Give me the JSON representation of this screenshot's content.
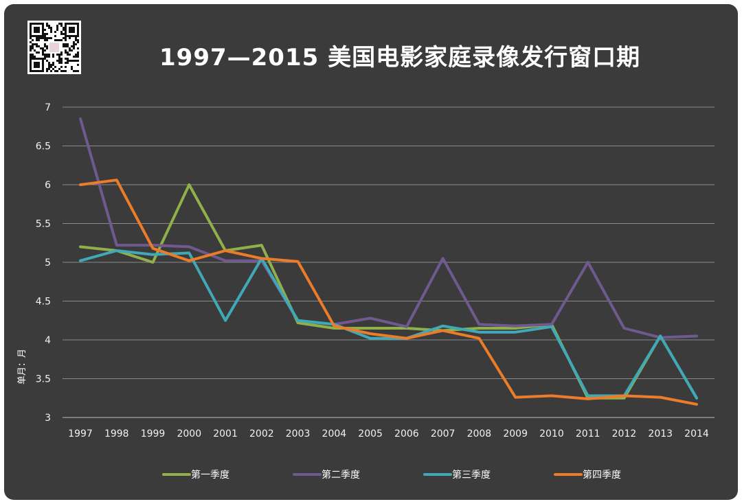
{
  "title": "1997—2015 美国电影家庭录像发行窗口期",
  "chart_data": {
    "type": "line",
    "title": "1997—2015 美国电影家庭录像发行窗口期",
    "xlabel": "",
    "ylabel": "单月：月",
    "categories": [
      "1997",
      "1998",
      "1999",
      "2000",
      "2001",
      "2002",
      "2003",
      "2004",
      "2005",
      "2006",
      "2007",
      "2008",
      "2009",
      "2010",
      "2011",
      "2012",
      "2013",
      "2014"
    ],
    "ylim": [
      3,
      7
    ],
    "yticks": [
      3,
      3.5,
      4,
      4.5,
      5,
      5.5,
      6,
      6.5,
      7
    ],
    "ytick_labels": [
      "3",
      "3.5",
      "4",
      "4.5",
      "5",
      "5.5",
      "6",
      "6.5",
      "7"
    ],
    "grid": true,
    "legend": "bottom",
    "series": [
      {
        "name": "第一季度",
        "color": "#8fb04a",
        "values": [
          5.2,
          5.15,
          5.0,
          6.0,
          5.15,
          5.22,
          4.22,
          4.15,
          4.15,
          4.15,
          4.12,
          4.15,
          4.15,
          4.2,
          3.25,
          3.25,
          4.05,
          3.25
        ]
      },
      {
        "name": "第二季度",
        "color": "#6f5a8f",
        "values": [
          6.85,
          5.22,
          5.22,
          5.2,
          5.02,
          5.02,
          4.25,
          4.2,
          4.28,
          4.17,
          5.05,
          4.2,
          4.18,
          4.2,
          5.0,
          4.15,
          4.03,
          4.05
        ]
      },
      {
        "name": "第三季度",
        "color": "#3fa9b8",
        "values": [
          5.02,
          5.15,
          5.1,
          5.12,
          4.25,
          5.05,
          4.25,
          4.2,
          4.02,
          4.02,
          4.18,
          4.1,
          4.1,
          4.17,
          3.28,
          3.28,
          4.05,
          3.25
        ]
      },
      {
        "name": "第四季度",
        "color": "#ec7c2a",
        "values": [
          6.0,
          6.06,
          5.18,
          5.02,
          5.15,
          5.05,
          5.01,
          4.18,
          4.08,
          4.02,
          4.12,
          4.02,
          3.26,
          3.28,
          3.24,
          3.28,
          3.26,
          3.17
        ]
      }
    ]
  }
}
